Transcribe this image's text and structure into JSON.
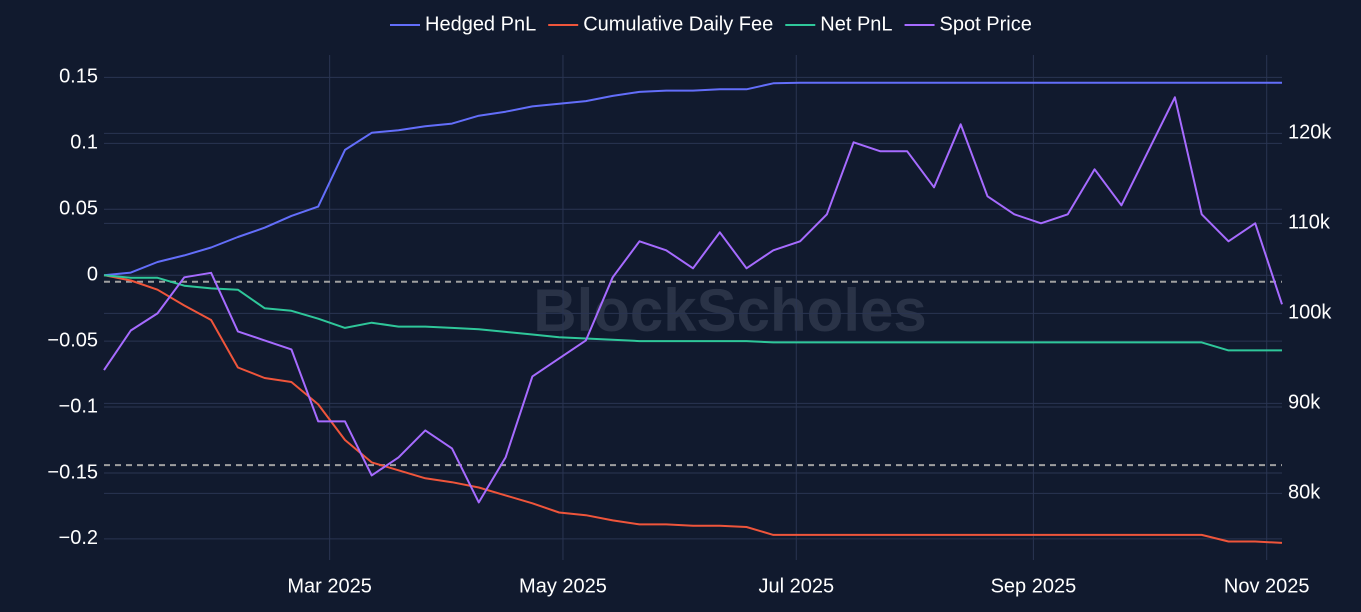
{
  "chart_data": {
    "type": "line",
    "watermark": "BlockScholes",
    "x": [
      "2025-01-01",
      "2025-01-08",
      "2025-01-15",
      "2025-01-22",
      "2025-01-29",
      "2025-02-05",
      "2025-02-12",
      "2025-02-19",
      "2025-02-26",
      "2025-03-05",
      "2025-03-12",
      "2025-03-19",
      "2025-03-26",
      "2025-04-02",
      "2025-04-09",
      "2025-04-16",
      "2025-04-23",
      "2025-04-30",
      "2025-05-07",
      "2025-05-14",
      "2025-05-21",
      "2025-05-28",
      "2025-06-04",
      "2025-06-11",
      "2025-06-18",
      "2025-06-25",
      "2025-07-02",
      "2025-07-09",
      "2025-07-16",
      "2025-07-23",
      "2025-07-30",
      "2025-08-06",
      "2025-08-13",
      "2025-08-20",
      "2025-08-27",
      "2025-09-03",
      "2025-09-10",
      "2025-09-17",
      "2025-09-24",
      "2025-10-01",
      "2025-10-08",
      "2025-10-15",
      "2025-10-22",
      "2025-10-29",
      "2025-11-05"
    ],
    "series": [
      {
        "name": "Hedged PnL",
        "color": "#636efa",
        "values": [
          0,
          0.002,
          0.01,
          0.015,
          0.021,
          0.029,
          0.036,
          0.045,
          0.052,
          0.095,
          0.108,
          0.11,
          0.113,
          0.115,
          0.121,
          0.124,
          0.128,
          0.13,
          0.132,
          0.136,
          0.139,
          0.14,
          0.14,
          0.141,
          0.141,
          0.1455,
          0.146,
          0.146,
          0.146,
          0.146,
          0.146,
          0.146,
          0.146,
          0.146,
          0.146,
          0.146,
          0.146,
          0.146,
          0.146,
          0.146,
          0.146,
          0.146,
          0.146,
          0.146,
          0.146
        ]
      },
      {
        "name": "Cumulative Daily Fee",
        "color": "#ef553b",
        "values": [
          0,
          -0.004,
          -0.011,
          -0.023,
          -0.034,
          -0.07,
          -0.078,
          -0.081,
          -0.098,
          -0.125,
          -0.142,
          -0.148,
          -0.154,
          -0.157,
          -0.161,
          -0.167,
          -0.173,
          -0.18,
          -0.182,
          -0.186,
          -0.189,
          -0.189,
          -0.19,
          -0.19,
          -0.191,
          -0.197,
          -0.197,
          -0.197,
          -0.197,
          -0.197,
          -0.197,
          -0.197,
          -0.197,
          -0.197,
          -0.197,
          -0.197,
          -0.197,
          -0.197,
          -0.197,
          -0.197,
          -0.197,
          -0.197,
          -0.202,
          -0.202,
          -0.203
        ]
      },
      {
        "name": "Net PnL",
        "color": "#2fc79a",
        "values": [
          0,
          -0.002,
          -0.002,
          -0.008,
          -0.01,
          -0.011,
          -0.025,
          -0.027,
          -0.033,
          -0.04,
          -0.036,
          -0.039,
          -0.039,
          -0.04,
          -0.041,
          -0.043,
          -0.045,
          -0.047,
          -0.048,
          -0.049,
          -0.05,
          -0.05,
          -0.05,
          -0.05,
          -0.05,
          -0.051,
          -0.051,
          -0.051,
          -0.051,
          -0.051,
          -0.051,
          -0.051,
          -0.051,
          -0.051,
          -0.051,
          -0.051,
          -0.051,
          -0.051,
          -0.051,
          -0.051,
          -0.051,
          -0.051,
          -0.057,
          -0.057,
          -0.057
        ]
      },
      {
        "name": "Spot Price",
        "color": "#a66bff",
        "axis": "y2",
        "values": [
          93700,
          98100,
          100000,
          104000,
          104500,
          98000,
          97000,
          96000,
          88000,
          88000,
          82000,
          84000,
          87000,
          85000,
          79000,
          84000,
          93000,
          95000,
          97000,
          104000,
          108000,
          107000,
          105000,
          109000,
          105000,
          107000,
          108000,
          111000,
          119000,
          118000,
          118000,
          114000,
          121000,
          113000,
          111000,
          110000,
          111000,
          116000,
          112000,
          118000,
          124000,
          111000,
          108000,
          110000,
          101000
        ]
      }
    ],
    "xlim": [
      "2025-01-01",
      "2025-11-05"
    ],
    "xticks": [
      {
        "value": "2025-03-01",
        "label": "Mar 2025"
      },
      {
        "value": "2025-05-01",
        "label": "May 2025"
      },
      {
        "value": "2025-07-01",
        "label": "Jul 2025"
      },
      {
        "value": "2025-09-01",
        "label": "Sep 2025"
      },
      {
        "value": "2025-11-01",
        "label": "Nov 2025"
      }
    ],
    "ylim": [
      -0.216,
      0.167
    ],
    "yticks": [
      0.15,
      0.1,
      0.05,
      0,
      {
        "value": -0.05,
        "label": "−0.05"
      },
      {
        "value": -0.1,
        "label": "−0.1"
      },
      {
        "value": -0.15,
        "label": "−0.15"
      },
      {
        "value": -0.2,
        "label": "−0.2"
      }
    ],
    "y2lim": [
      72600,
      128700
    ],
    "y2ticks": [
      {
        "value": 120000,
        "label": "120k"
      },
      {
        "value": 110000,
        "label": "110k"
      },
      {
        "value": 100000,
        "label": "100k"
      },
      {
        "value": 90000,
        "label": "90k"
      },
      {
        "value": 80000,
        "label": "80k"
      }
    ],
    "reference_lines": [
      -0.005,
      -0.144
    ],
    "grid": true
  }
}
